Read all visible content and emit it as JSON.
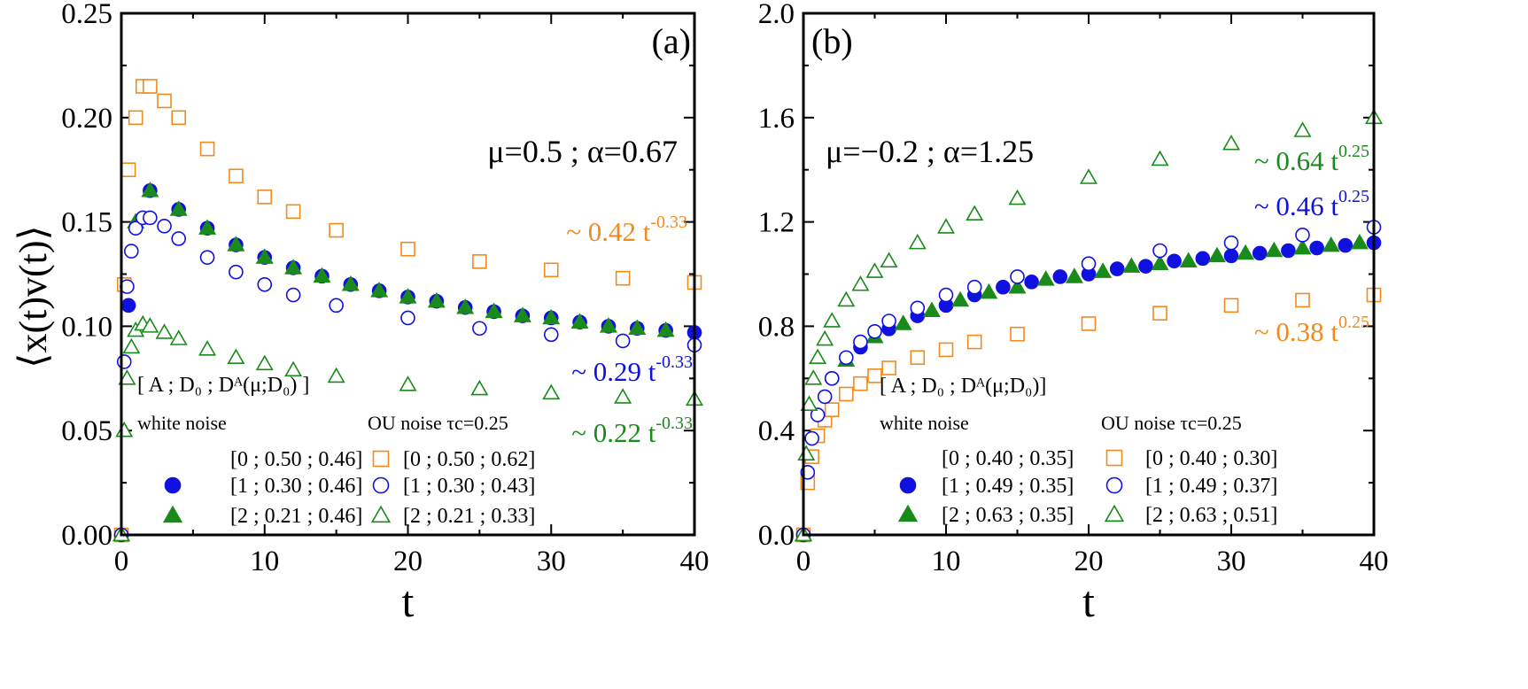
{
  "ylabel": "⟨x(t)v(t)⟩",
  "colors": {
    "orange": "#F28A1C",
    "blue": "#1010E0",
    "green": "#1A8A1A",
    "black": "#000000"
  },
  "chart_data": [
    {
      "type": "scatter",
      "panel_label": "(a)",
      "xlabel": "t",
      "xlim": [
        0,
        40
      ],
      "ylim": [
        0,
        0.25
      ],
      "xticks": [
        "0",
        "10",
        "20",
        "30",
        "40"
      ],
      "yticks": [
        "0.00",
        "0.05",
        "0.10",
        "0.15",
        "0.20",
        "0.25"
      ],
      "params": "μ=0.5 ; α=0.67",
      "legend": {
        "header": "[ A ; D₀ ; Dᴬ(μ;D₀) ]",
        "white_title": "white noise",
        "ou_title": "OU noise τc=0.25",
        "white": [
          "[0 ; 0.50 ; 0.46]",
          "[1 ; 0.30 ; 0.46]",
          "[2 ; 0.21 ; 0.46]"
        ],
        "ou": [
          "[0 ; 0.50 ; 0.62]",
          "[1 ; 0.30 ; 0.43]",
          "[2 ; 0.21 ; 0.33]"
        ]
      },
      "annotations": [
        {
          "text": "~ 0.42 t",
          "exp": "-0.33",
          "color": "orange"
        },
        {
          "text": "~ 0.29 t",
          "exp": "-0.33",
          "color": "blue"
        },
        {
          "text": "~ 0.22 t",
          "exp": "-0.33",
          "color": "green"
        }
      ],
      "series": [
        {
          "style": "dash-orange",
          "x": [
            0,
            0.3,
            0.6,
            1,
            1.5,
            2,
            3,
            4,
            6,
            8,
            10,
            15,
            20,
            25,
            30,
            35,
            40
          ],
          "y": [
            0,
            0.07,
            0.12,
            0.15,
            0.162,
            0.165,
            0.161,
            0.156,
            0.147,
            0.139,
            0.133,
            0.122,
            0.114,
            0.108,
            0.104,
            0.1,
            0.097
          ]
        },
        {
          "style": "filled-circle-blue",
          "x": [
            0,
            0.5,
            2,
            4,
            6,
            8,
            10,
            12,
            14,
            16,
            18,
            20,
            22,
            24,
            26,
            28,
            30,
            32,
            34,
            36,
            38,
            40
          ],
          "y": [
            0,
            0.11,
            0.165,
            0.156,
            0.147,
            0.139,
            0.133,
            0.128,
            0.124,
            0.12,
            0.117,
            0.114,
            0.112,
            0.109,
            0.107,
            0.105,
            0.104,
            0.102,
            0.1,
            0.099,
            0.098,
            0.097
          ]
        },
        {
          "style": "filled-triangle-green",
          "x": [
            0,
            1,
            2,
            4,
            6,
            8,
            10,
            12,
            14,
            16,
            18,
            20,
            22,
            24,
            26,
            28,
            30,
            32,
            34,
            36,
            38
          ],
          "y": [
            0,
            0.15,
            0.165,
            0.156,
            0.147,
            0.139,
            0.133,
            0.128,
            0.124,
            0.12,
            0.117,
            0.114,
            0.112,
            0.109,
            0.107,
            0.105,
            0.104,
            0.102,
            0.1,
            0.099,
            0.098
          ]
        },
        {
          "style": "open-square-orange",
          "x": [
            0,
            0.2,
            0.5,
            1,
            1.5,
            2,
            3,
            4,
            6,
            8,
            10,
            12,
            15,
            20,
            25,
            30,
            35,
            40
          ],
          "y": [
            0,
            0.12,
            0.175,
            0.2,
            0.215,
            0.215,
            0.208,
            0.2,
            0.185,
            0.172,
            0.162,
            0.155,
            0.146,
            0.137,
            0.131,
            0.127,
            0.123,
            0.121
          ]
        },
        {
          "style": "open-circle-blue",
          "x": [
            0,
            0.2,
            0.4,
            0.7,
            1,
            1.5,
            2,
            3,
            4,
            6,
            8,
            10,
            12,
            15,
            20,
            25,
            30,
            35,
            40
          ],
          "y": [
            0,
            0.083,
            0.119,
            0.136,
            0.147,
            0.152,
            0.152,
            0.148,
            0.142,
            0.133,
            0.126,
            0.12,
            0.115,
            0.11,
            0.104,
            0.099,
            0.096,
            0.093,
            0.091
          ]
        },
        {
          "style": "open-triangle-green",
          "x": [
            0,
            0.2,
            0.4,
            0.7,
            1,
            1.5,
            2,
            3,
            4,
            6,
            8,
            10,
            12,
            15,
            20,
            25,
            30,
            35,
            40
          ],
          "y": [
            0,
            0.05,
            0.075,
            0.09,
            0.098,
            0.101,
            0.1,
            0.097,
            0.094,
            0.089,
            0.085,
            0.082,
            0.079,
            0.076,
            0.072,
            0.07,
            0.068,
            0.066,
            0.065
          ]
        }
      ]
    },
    {
      "type": "scatter",
      "panel_label": "(b)",
      "xlabel": "t",
      "xlim": [
        0,
        40
      ],
      "ylim": [
        0,
        2.0
      ],
      "xticks": [
        "0",
        "10",
        "20",
        "30",
        "40"
      ],
      "yticks": [
        "0.0",
        "0.4",
        "0.8",
        "1.2",
        "1.6",
        "2.0"
      ],
      "params": "μ=−0.2 ; α=1.25",
      "legend": {
        "header": "[ A ; D₀ ; Dᴬ(μ;D₀)]",
        "white_title": "white noise",
        "ou_title": "OU noise τc=0.25",
        "white": [
          "[0 ; 0.40 ; 0.35]",
          "[1 ; 0.49 ; 0.35]",
          "[2 ; 0.63 ; 0.35]"
        ],
        "ou": [
          "[0 ; 0.40 ; 0.30]",
          "[1 ; 0.49 ; 0.37]",
          "[2 ; 0.63 ; 0.51]"
        ]
      },
      "annotations": [
        {
          "text": "~ 0.64 t",
          "exp": "0.25",
          "color": "green"
        },
        {
          "text": "~ 0.46 t",
          "exp": "0.25",
          "color": "blue"
        },
        {
          "text": "~ 0.38 t",
          "exp": "0.25",
          "color": "orange"
        }
      ],
      "series": [
        {
          "style": "dash-orange",
          "x": [
            0,
            0.3,
            0.6,
            1,
            1.5,
            2,
            3,
            4,
            6,
            8,
            10,
            15,
            20,
            25,
            30,
            35,
            40
          ],
          "y": [
            0,
            0.32,
            0.42,
            0.5,
            0.56,
            0.6,
            0.67,
            0.72,
            0.79,
            0.84,
            0.88,
            0.95,
            1.0,
            1.04,
            1.07,
            1.1,
            1.12
          ]
        },
        {
          "style": "filled-circle-blue",
          "x": [
            0,
            2,
            4,
            6,
            8,
            10,
            12,
            14,
            16,
            18,
            20,
            22,
            24,
            26,
            28,
            30,
            32,
            34,
            36,
            38,
            40
          ],
          "y": [
            0,
            0.6,
            0.72,
            0.79,
            0.84,
            0.88,
            0.92,
            0.95,
            0.97,
            0.99,
            1.0,
            1.02,
            1.03,
            1.05,
            1.06,
            1.07,
            1.08,
            1.09,
            1.1,
            1.11,
            1.12
          ]
        },
        {
          "style": "filled-triangle-green",
          "x": [
            0,
            3,
            5,
            7,
            9,
            11,
            13,
            15,
            17,
            19,
            21,
            23,
            25,
            27,
            29,
            31,
            33,
            35,
            37,
            39
          ],
          "y": [
            0,
            0.67,
            0.76,
            0.81,
            0.86,
            0.9,
            0.93,
            0.95,
            0.98,
            0.99,
            1.01,
            1.03,
            1.04,
            1.05,
            1.07,
            1.08,
            1.09,
            1.1,
            1.11,
            1.12
          ]
        },
        {
          "style": "open-square-orange",
          "x": [
            0,
            0.3,
            0.6,
            1,
            1.5,
            2,
            3,
            4,
            5,
            6,
            8,
            10,
            12,
            15,
            20,
            25,
            30,
            35,
            40
          ],
          "y": [
            0,
            0.2,
            0.3,
            0.38,
            0.44,
            0.48,
            0.54,
            0.58,
            0.61,
            0.64,
            0.68,
            0.71,
            0.74,
            0.77,
            0.81,
            0.85,
            0.88,
            0.9,
            0.92
          ]
        },
        {
          "style": "open-circle-blue",
          "x": [
            0,
            0.3,
            0.6,
            1,
            1.5,
            2,
            3,
            4,
            5,
            6,
            8,
            10,
            12,
            15,
            20,
            25,
            30,
            35,
            40
          ],
          "y": [
            0,
            0.24,
            0.37,
            0.46,
            0.53,
            0.6,
            0.68,
            0.74,
            0.78,
            0.82,
            0.87,
            0.92,
            0.95,
            0.99,
            1.04,
            1.09,
            1.12,
            1.15,
            1.18
          ]
        },
        {
          "style": "open-triangle-green",
          "x": [
            0,
            0.2,
            0.4,
            0.7,
            1,
            1.5,
            2,
            3,
            4,
            5,
            6,
            8,
            10,
            12,
            15,
            20,
            25,
            30,
            35,
            40
          ],
          "y": [
            0,
            0.31,
            0.5,
            0.6,
            0.68,
            0.75,
            0.82,
            0.9,
            0.96,
            1.01,
            1.05,
            1.12,
            1.18,
            1.23,
            1.29,
            1.37,
            1.44,
            1.5,
            1.55,
            1.6
          ]
        }
      ]
    }
  ]
}
